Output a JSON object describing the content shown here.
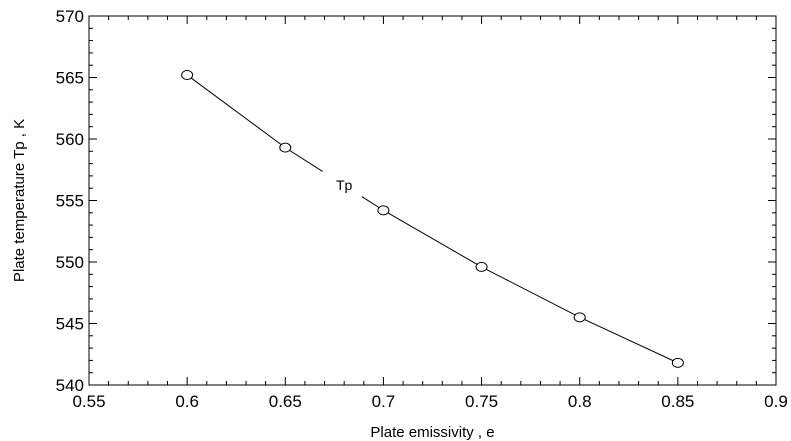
{
  "chart_data": {
    "type": "line",
    "title": "",
    "xlabel": "Plate emissivity , e",
    "ylabel": "Plate temperature Tp , K",
    "xlim": [
      0.55,
      0.9
    ],
    "ylim": [
      540,
      570
    ],
    "x_ticks": [
      "0.55",
      "0.6",
      "0.65",
      "0.7",
      "0.75",
      "0.8",
      "0.85",
      "0.9"
    ],
    "y_ticks": [
      "540",
      "545",
      "550",
      "555",
      "560",
      "565",
      "570"
    ],
    "grid": false,
    "series": [
      {
        "name": "Tp",
        "x": [
          0.6,
          0.65,
          0.7,
          0.75,
          0.8,
          0.85
        ],
        "y": [
          565.2,
          559.3,
          554.2,
          549.6,
          545.5,
          541.8
        ],
        "marker": "open-circle",
        "color": "#000000"
      }
    ]
  }
}
